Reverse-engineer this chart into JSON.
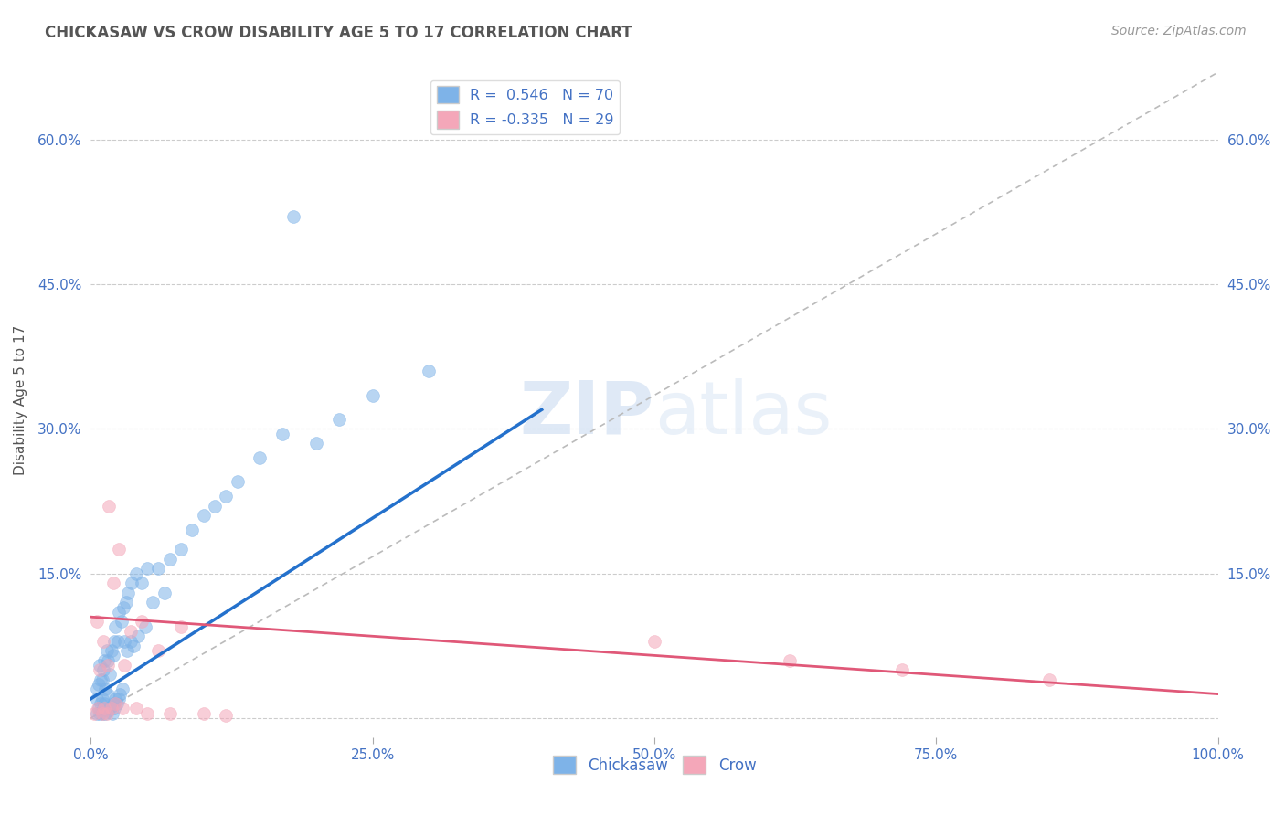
{
  "title": "CHICKASAW VS CROW DISABILITY AGE 5 TO 17 CORRELATION CHART",
  "source": "Source: ZipAtlas.com",
  "ylabel": "Disability Age 5 to 17",
  "xlim": [
    0,
    1.0
  ],
  "ylim": [
    -0.02,
    0.68
  ],
  "xticks": [
    0.0,
    0.25,
    0.5,
    0.75,
    1.0
  ],
  "yticks": [
    0.0,
    0.15,
    0.3,
    0.45,
    0.6
  ],
  "xticklabels": [
    "0.0%",
    "25.0%",
    "50.0%",
    "75.0%",
    "100.0%"
  ],
  "yticklabels": [
    "",
    "15.0%",
    "30.0%",
    "45.0%",
    "60.0%"
  ],
  "chickasaw_color": "#7EB3E8",
  "crow_color": "#F4A7B9",
  "chickasaw_line_color": "#2471CC",
  "crow_line_color": "#E05878",
  "ref_line_color": "#BBBBBB",
  "background_color": "#FFFFFF",
  "watermark_zip": "ZIP",
  "watermark_atlas": "atlas",
  "title_color": "#555555",
  "axis_label_color": "#555555",
  "tick_label_color": "#4472C4",
  "grid_color": "#CCCCCC",
  "chickasaw_R": 0.546,
  "chickasaw_N": 70,
  "crow_R": -0.335,
  "crow_N": 29,
  "marker_size": 100,
  "marker_alpha": 0.55,
  "chickasaw_x": [
    0.005,
    0.005,
    0.005,
    0.007,
    0.007,
    0.008,
    0.008,
    0.009,
    0.009,
    0.01,
    0.01,
    0.01,
    0.011,
    0.011,
    0.012,
    0.012,
    0.013,
    0.013,
    0.014,
    0.015,
    0.015,
    0.015,
    0.016,
    0.017,
    0.018,
    0.018,
    0.019,
    0.02,
    0.02,
    0.021,
    0.021,
    0.022,
    0.022,
    0.023,
    0.024,
    0.025,
    0.025,
    0.026,
    0.027,
    0.028,
    0.029,
    0.03,
    0.031,
    0.032,
    0.033,
    0.035,
    0.036,
    0.038,
    0.04,
    0.042,
    0.045,
    0.048,
    0.05,
    0.055,
    0.06,
    0.065,
    0.07,
    0.08,
    0.09,
    0.1,
    0.11,
    0.12,
    0.13,
    0.15,
    0.17,
    0.18,
    0.2,
    0.22,
    0.25,
    0.3
  ],
  "chickasaw_y": [
    0.005,
    0.02,
    0.03,
    0.01,
    0.035,
    0.005,
    0.055,
    0.015,
    0.04,
    0.005,
    0.02,
    0.04,
    0.01,
    0.05,
    0.015,
    0.06,
    0.005,
    0.03,
    0.07,
    0.008,
    0.025,
    0.06,
    0.01,
    0.045,
    0.012,
    0.07,
    0.005,
    0.015,
    0.065,
    0.01,
    0.08,
    0.02,
    0.095,
    0.015,
    0.08,
    0.02,
    0.11,
    0.025,
    0.1,
    0.03,
    0.115,
    0.08,
    0.12,
    0.07,
    0.13,
    0.08,
    0.14,
    0.075,
    0.15,
    0.085,
    0.14,
    0.095,
    0.155,
    0.12,
    0.155,
    0.13,
    0.165,
    0.175,
    0.195,
    0.21,
    0.22,
    0.23,
    0.245,
    0.27,
    0.295,
    0.52,
    0.285,
    0.31,
    0.335,
    0.36
  ],
  "crow_x": [
    0.003,
    0.005,
    0.006,
    0.008,
    0.01,
    0.011,
    0.012,
    0.014,
    0.015,
    0.016,
    0.018,
    0.02,
    0.022,
    0.025,
    0.028,
    0.03,
    0.035,
    0.04,
    0.045,
    0.05,
    0.06,
    0.07,
    0.08,
    0.1,
    0.12,
    0.5,
    0.62,
    0.72,
    0.85
  ],
  "crow_y": [
    0.005,
    0.1,
    0.01,
    0.05,
    0.005,
    0.08,
    0.01,
    0.005,
    0.055,
    0.22,
    0.01,
    0.14,
    0.015,
    0.175,
    0.01,
    0.055,
    0.09,
    0.01,
    0.1,
    0.005,
    0.07,
    0.005,
    0.095,
    0.005,
    0.003,
    0.08,
    0.06,
    0.05,
    0.04
  ],
  "chickasaw_line_x": [
    0.0,
    0.4
  ],
  "chickasaw_line_y": [
    0.02,
    0.32
  ],
  "crow_line_x": [
    0.0,
    1.0
  ],
  "crow_line_y": [
    0.105,
    0.025
  ]
}
